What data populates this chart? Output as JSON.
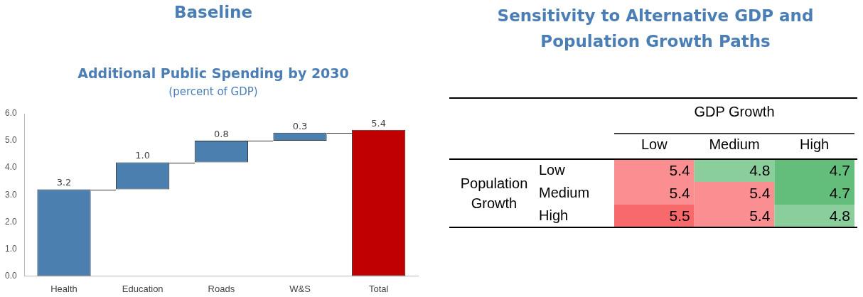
{
  "chart_data": [
    {
      "type": "bar",
      "title": "Baseline",
      "subtitle": "Additional Public Spending by 2030",
      "annotations": [
        "(percent of GDP)"
      ],
      "categories": [
        "Health",
        "Education",
        "Roads",
        "W&S",
        "Total"
      ],
      "values": [
        3.2,
        1.0,
        0.8,
        0.3,
        5.4
      ],
      "base": [
        0,
        3.2,
        4.2,
        5.0,
        0
      ],
      "colors": [
        "#4a7fb0",
        "#4a7fb0",
        "#4a7fb0",
        "#4a7fb0",
        "#c00000"
      ],
      "ylim": [
        0,
        6
      ],
      "yticks": [
        {
          "value": 0,
          "label": "0.0"
        },
        {
          "value": 1,
          "label": "1.0"
        },
        {
          "value": 2,
          "label": "2.0"
        },
        {
          "value": 3,
          "label": "3.0"
        },
        {
          "value": 4,
          "label": "4.0"
        },
        {
          "value": 5,
          "label": "5.0"
        },
        {
          "value": 6,
          "label": "6.0"
        }
      ],
      "value_labels": [
        "3.2",
        "1.0",
        "0.8",
        "0.3",
        "5.4"
      ],
      "legend": false,
      "grid": false
    },
    {
      "type": "heatmap",
      "title": "Sensitivity to Alternative GDP and Population Growth Paths",
      "xlabel": "GDP Growth",
      "ylabel": "Population Growth",
      "categories": [
        "Low",
        "Medium",
        "High"
      ],
      "y_categories": [
        "Low",
        "Medium",
        "High"
      ],
      "data_labels": true,
      "cells": [
        [
          5.4,
          4.8,
          4.7
        ],
        [
          5.4,
          5.4,
          4.7
        ],
        [
          5.5,
          5.4,
          4.8
        ]
      ]
    }
  ]
}
